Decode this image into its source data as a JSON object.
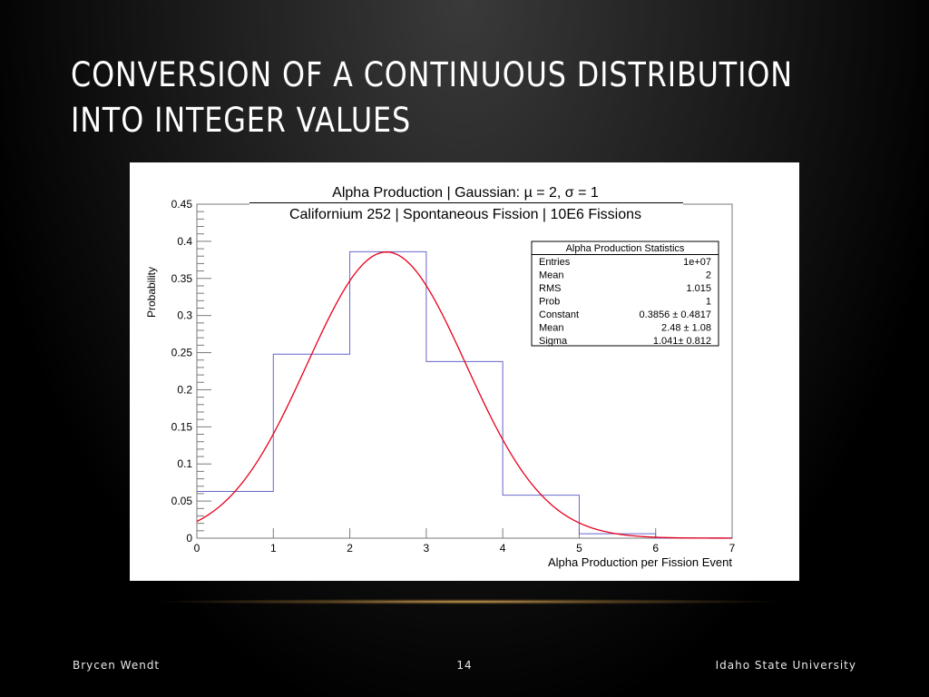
{
  "slide": {
    "title_line1": "CONVERSION OF A CONTINUOUS DISTRIBUTION",
    "title_line2": "INTO INTEGER VALUES",
    "footer_left": "Brycen Wendt",
    "footer_page": "14",
    "footer_right": "Idaho State University"
  },
  "chart_data": {
    "type": "histogram",
    "title": "Alpha Production | Gaussian: µ = 2, σ = 1",
    "subtitle": "Californium 252 | Spontaneous Fission | 10E6 Fissions",
    "xlabel": "Alpha Production per Fission Event",
    "ylabel": "Probability",
    "xlim": [
      0,
      7
    ],
    "ylim": [
      0,
      0.45
    ],
    "x_ticks": [
      "0",
      "1",
      "2",
      "3",
      "4",
      "5",
      "6",
      "7"
    ],
    "y_ticks": [
      "0",
      "0.05",
      "0.1",
      "0.15",
      "0.2",
      "0.25",
      "0.3",
      "0.35",
      "0.4",
      "0.45"
    ],
    "bins": [
      {
        "x_start": 0,
        "x_end": 1,
        "value": 0.063
      },
      {
        "x_start": 1,
        "x_end": 2,
        "value": 0.248
      },
      {
        "x_start": 2,
        "x_end": 3,
        "value": 0.386
      },
      {
        "x_start": 3,
        "x_end": 4,
        "value": 0.238
      },
      {
        "x_start": 4,
        "x_end": 5,
        "value": 0.058
      },
      {
        "x_start": 5,
        "x_end": 6,
        "value": 0.006
      },
      {
        "x_start": 6,
        "x_end": 7,
        "value": 0.0003
      }
    ],
    "fit": {
      "type": "gaussian",
      "constant": 0.3856,
      "mean": 2.48,
      "sigma": 1.041
    },
    "histogram_color": "#6666cc",
    "fit_color": "#e8001c",
    "grid": false,
    "stats_box": {
      "title": "Alpha Production Statistics",
      "rows": [
        {
          "label": "Entries",
          "value": "1e+07"
        },
        {
          "label": "Mean",
          "value": "2"
        },
        {
          "label": "RMS",
          "value": "1.015"
        },
        {
          "label": "Prob",
          "value": "1"
        },
        {
          "label": "Constant",
          "value": "0.3856 ± 0.4817"
        },
        {
          "label": "Mean",
          "value": "2.48 ± 1.08"
        },
        {
          "label": "Sigma",
          "value": "1.041± 0.812"
        }
      ]
    }
  }
}
